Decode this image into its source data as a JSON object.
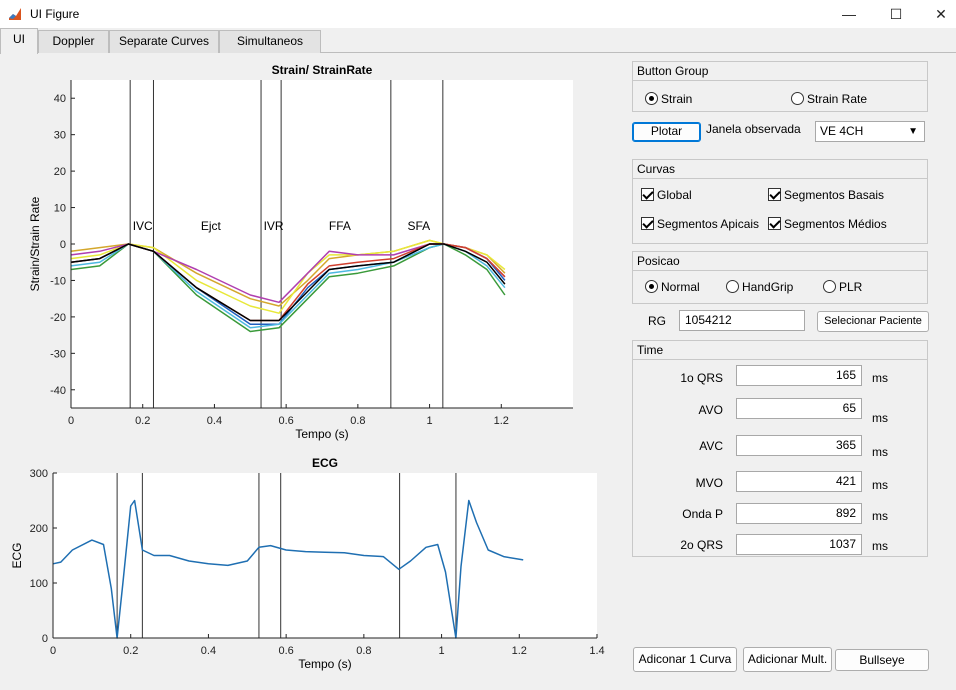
{
  "window": {
    "title": "UI Figure",
    "minimize": "—",
    "maximize": "☐",
    "close": "✕"
  },
  "tabs": [
    {
      "label": "UI",
      "active": true
    },
    {
      "label": "Doppler",
      "active": false
    },
    {
      "label": "Separate Curves",
      "active": false
    },
    {
      "label": "Simultaneos",
      "active": false
    }
  ],
  "button_group": {
    "title": "Button Group",
    "options": [
      {
        "label": "Strain",
        "selected": true
      },
      {
        "label": "Strain Rate",
        "selected": false
      }
    ]
  },
  "plotar_label": "Plotar",
  "janela": {
    "label": "Janela observada",
    "value": "VE 4CH"
  },
  "curvas": {
    "title": "Curvas",
    "items": [
      {
        "label": "Global",
        "checked": true
      },
      {
        "label": "Segmentos Basais",
        "checked": true
      },
      {
        "label": "Segmentos Apicais",
        "checked": true
      },
      {
        "label": "Segmentos Médios",
        "checked": true
      }
    ]
  },
  "posicao": {
    "title": "Posicao",
    "options": [
      {
        "label": "Normal",
        "selected": true
      },
      {
        "label": "HandGrip",
        "selected": false
      },
      {
        "label": "PLR",
        "selected": false
      }
    ]
  },
  "rg": {
    "label": "RG",
    "value": "1054212",
    "button": "Selecionar Paciente"
  },
  "time": {
    "title": "Time",
    "unit": "ms",
    "rows": [
      {
        "label": "1o QRS",
        "value": "165"
      },
      {
        "label": "AVO",
        "value": "65"
      },
      {
        "label": "AVC",
        "value": "365"
      },
      {
        "label": "MVO",
        "value": "421"
      },
      {
        "label": "Onda P",
        "value": "892"
      },
      {
        "label": "2o QRS",
        "value": "1037"
      }
    ]
  },
  "bottom_buttons": {
    "add_one": "Adiconar 1 Curva",
    "add_multi": "Adicionar Mult.",
    "bullseye": "Bullseye"
  },
  "chart_data": [
    {
      "type": "line",
      "title": "Strain/ StrainRate",
      "xlabel": "Tempo (s)",
      "ylabel": "Strain/Strain Rate",
      "xlim": [
        0,
        1.4
      ],
      "ylim": [
        -45,
        45
      ],
      "xticks": [
        "0",
        "0.2",
        "0.4",
        "0.6",
        "0.8",
        "1",
        "1.2"
      ],
      "yticks": [
        "-40",
        "-30",
        "-20",
        "-10",
        "0",
        "10",
        "20",
        "30",
        "40"
      ],
      "vlines": [
        0.165,
        0.23,
        0.53,
        0.586,
        0.892,
        1.037
      ],
      "phase_labels": [
        {
          "text": "IVC",
          "x": 0.2
        },
        {
          "text": "Ejct",
          "x": 0.39
        },
        {
          "text": "IVR",
          "x": 0.565
        },
        {
          "text": "FFA",
          "x": 0.75
        },
        {
          "text": "SFA",
          "x": 0.97
        }
      ],
      "series": [
        {
          "color": "#1f5fbf",
          "x": [
            0,
            0.08,
            0.16,
            0.23,
            0.35,
            0.5,
            0.58,
            0.66,
            0.72,
            0.8,
            0.9,
            1.0,
            1.04,
            1.1,
            1.16,
            1.21
          ],
          "y": [
            -5,
            -4,
            0,
            -2,
            -12,
            -22,
            -22,
            -12,
            -7,
            -6,
            -5,
            0,
            0,
            -1,
            -4,
            -10
          ]
        },
        {
          "color": "#d4a72c",
          "x": [
            0,
            0.08,
            0.16,
            0.23,
            0.35,
            0.5,
            0.58,
            0.66,
            0.72,
            0.8,
            0.9,
            1.0,
            1.04,
            1.1,
            1.16,
            1.21
          ],
          "y": [
            -2,
            -1,
            0,
            -1,
            -8,
            -15,
            -17,
            -10,
            -4,
            -3,
            -2,
            1,
            0,
            -1,
            -3,
            -8
          ]
        },
        {
          "color": "#e8e83a",
          "x": [
            0,
            0.08,
            0.16,
            0.23,
            0.35,
            0.5,
            0.58,
            0.66,
            0.72,
            0.8,
            0.9,
            1.0,
            1.04,
            1.1,
            1.16,
            1.21
          ],
          "y": [
            -4,
            -3,
            0,
            -1,
            -10,
            -17,
            -19,
            -8,
            -3,
            -3,
            -2,
            1,
            0,
            -1,
            -3,
            -7
          ]
        },
        {
          "color": "#b03fb0",
          "x": [
            0,
            0.08,
            0.16,
            0.23,
            0.35,
            0.5,
            0.58,
            0.66,
            0.72,
            0.8,
            0.9,
            1.0,
            1.04,
            1.1,
            1.16,
            1.21
          ],
          "y": [
            -3,
            -2,
            0,
            -2,
            -7,
            -14,
            -16,
            -8,
            -2,
            -3,
            -3,
            0,
            0,
            -1,
            -4,
            -9
          ]
        },
        {
          "color": "#3a9a3a",
          "x": [
            0,
            0.08,
            0.16,
            0.23,
            0.35,
            0.5,
            0.58,
            0.66,
            0.72,
            0.8,
            0.9,
            1.0,
            1.04,
            1.1,
            1.16,
            1.21
          ],
          "y": [
            -7,
            -6,
            0,
            -2,
            -14,
            -24,
            -23,
            -15,
            -9,
            -8,
            -6,
            -1,
            0,
            -3,
            -7,
            -14
          ]
        },
        {
          "color": "#4db8e0",
          "x": [
            0,
            0.08,
            0.16,
            0.23,
            0.35,
            0.5,
            0.58,
            0.66,
            0.72,
            0.8,
            0.9,
            1.0,
            1.04,
            1.1,
            1.16,
            1.21
          ],
          "y": [
            -6,
            -5,
            0,
            -2,
            -13,
            -23,
            -22,
            -14,
            -8,
            -7,
            -5,
            -1,
            0,
            -2,
            -6,
            -12
          ]
        },
        {
          "color": "#d04030",
          "x": [
            0,
            0.08,
            0.16,
            0.23,
            0.35,
            0.5,
            0.58,
            0.66,
            0.72,
            0.8,
            0.9,
            1.0,
            1.04,
            1.1,
            1.16,
            1.21
          ],
          "y": [
            -5,
            -4,
            0,
            -2,
            -12,
            -21,
            -21,
            -11,
            -6,
            -5,
            -4,
            0,
            0,
            -1,
            -4,
            -9
          ]
        },
        {
          "color": "#000000",
          "x": [
            0,
            0.08,
            0.16,
            0.23,
            0.35,
            0.5,
            0.58,
            0.66,
            0.72,
            0.8,
            0.9,
            1.0,
            1.04,
            1.1,
            1.16,
            1.21
          ],
          "y": [
            -5,
            -4,
            0,
            -2,
            -12,
            -21,
            -21,
            -13,
            -7,
            -6,
            -5,
            0,
            0,
            -2,
            -5,
            -11
          ]
        }
      ]
    },
    {
      "type": "line",
      "title": "ECG",
      "xlabel": "Tempo (s)",
      "ylabel": "ECG",
      "xlim": [
        0,
        1.4
      ],
      "ylim": [
        0,
        300
      ],
      "xticks": [
        "0",
        "0.2",
        "0.4",
        "0.6",
        "0.8",
        "1",
        "1.2",
        "1.4"
      ],
      "yticks": [
        "0",
        "100",
        "200",
        "300"
      ],
      "vlines": [
        0.165,
        0.23,
        0.53,
        0.586,
        0.892,
        1.037
      ],
      "series": [
        {
          "color": "#1f6fb2",
          "x": [
            0,
            0.02,
            0.05,
            0.1,
            0.13,
            0.15,
            0.165,
            0.18,
            0.2,
            0.21,
            0.23,
            0.26,
            0.3,
            0.35,
            0.4,
            0.45,
            0.5,
            0.53,
            0.56,
            0.6,
            0.65,
            0.7,
            0.75,
            0.8,
            0.85,
            0.89,
            0.92,
            0.96,
            0.99,
            1.01,
            1.037,
            1.05,
            1.07,
            1.09,
            1.12,
            1.16,
            1.21
          ],
          "y": [
            135,
            138,
            160,
            178,
            170,
            90,
            0,
            100,
            240,
            250,
            160,
            150,
            150,
            140,
            135,
            132,
            140,
            165,
            168,
            160,
            157,
            156,
            155,
            150,
            148,
            125,
            140,
            165,
            170,
            120,
            0,
            130,
            250,
            210,
            160,
            148,
            142
          ]
        }
      ]
    }
  ]
}
